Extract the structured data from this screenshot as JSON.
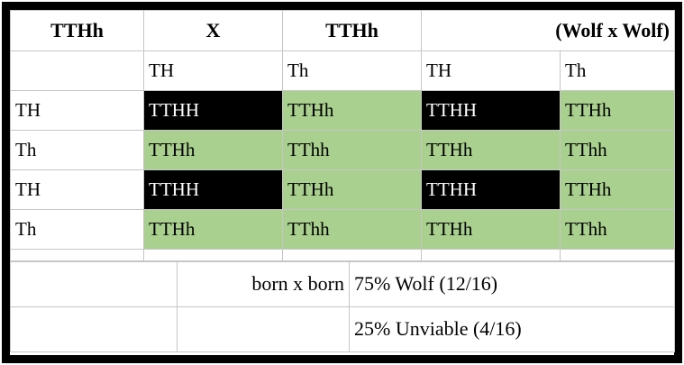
{
  "colors": {
    "dominant_bg": "#000000",
    "viable_bg": "#a9d08e",
    "grid_line": "#c6c6c6",
    "outer_border": "#000000"
  },
  "header": {
    "parent1": "TTHh",
    "cross_symbol": "X",
    "parent2": "TTHh",
    "cross_note": "(Wolf x Wolf)"
  },
  "gametes_top": [
    "TH",
    "Th",
    "TH",
    "Th"
  ],
  "punnett": {
    "rows": [
      {
        "label": "TH",
        "cells": [
          {
            "text": "TTHH",
            "bg": "black"
          },
          {
            "text": "TTHh",
            "bg": "green"
          },
          {
            "text": "TTHH",
            "bg": "black"
          },
          {
            "text": "TTHh",
            "bg": "green"
          }
        ]
      },
      {
        "label": "Th",
        "cells": [
          {
            "text": "TTHh",
            "bg": "green"
          },
          {
            "text": "TThh",
            "bg": "green"
          },
          {
            "text": "TTHh",
            "bg": "green"
          },
          {
            "text": "TThh",
            "bg": "green"
          }
        ]
      },
      {
        "label": "TH",
        "cells": [
          {
            "text": "TTHH",
            "bg": "black"
          },
          {
            "text": "TTHh",
            "bg": "green"
          },
          {
            "text": "TTHH",
            "bg": "black"
          },
          {
            "text": "TTHh",
            "bg": "green"
          }
        ]
      },
      {
        "label": "Th",
        "cells": [
          {
            "text": "TTHh",
            "bg": "green"
          },
          {
            "text": "TThh",
            "bg": "green"
          },
          {
            "text": "TTHh",
            "bg": "green"
          },
          {
            "text": "TThh",
            "bg": "green"
          }
        ]
      }
    ]
  },
  "summary": {
    "cross_label": "born x born",
    "result1": "75% Wolf (12/16)",
    "result2": "25% Unviable (4/16)"
  }
}
